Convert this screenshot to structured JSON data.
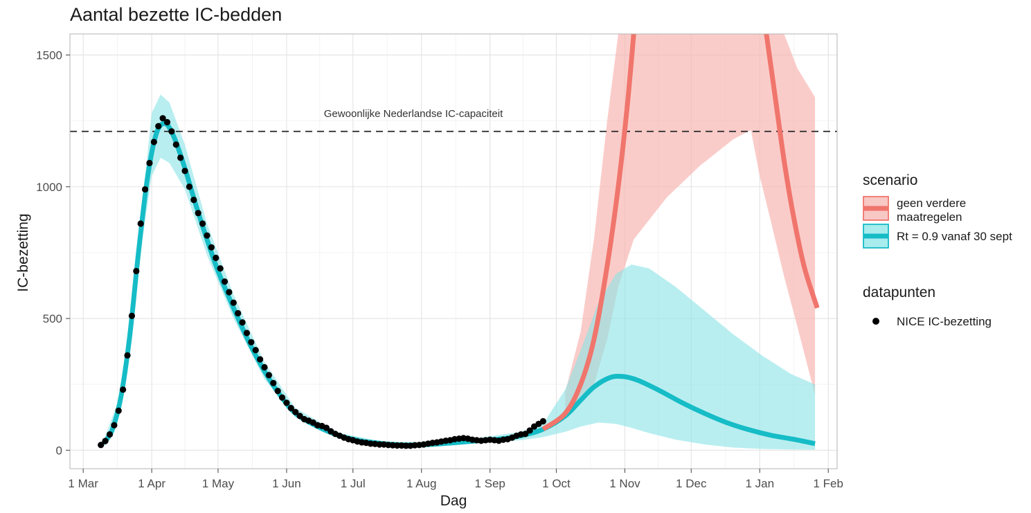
{
  "chart_data": {
    "type": "line",
    "title": "Aantal bezette IC-bedden",
    "xlabel": "Dag",
    "ylabel": "IC-bezetting",
    "x_axis_type": "date",
    "x_range": [
      "2020-02-24",
      "2021-02-05"
    ],
    "ylim": [
      -70,
      1580
    ],
    "x_ticks": [
      {
        "date": "2020-03-01",
        "label": "1 Mar"
      },
      {
        "date": "2020-04-01",
        "label": "1 Apr"
      },
      {
        "date": "2020-05-01",
        "label": "1 May"
      },
      {
        "date": "2020-06-01",
        "label": "1 Jun"
      },
      {
        "date": "2020-07-01",
        "label": "1 Jul"
      },
      {
        "date": "2020-08-01",
        "label": "1 Aug"
      },
      {
        "date": "2020-09-01",
        "label": "1 Sep"
      },
      {
        "date": "2020-10-01",
        "label": "1 Oct"
      },
      {
        "date": "2020-11-01",
        "label": "1 Nov"
      },
      {
        "date": "2020-12-01",
        "label": "1 Dec"
      },
      {
        "date": "2021-01-01",
        "label": "1 Jan"
      },
      {
        "date": "2021-02-01",
        "label": "1 Feb"
      }
    ],
    "y_ticks": [
      0,
      500,
      1000,
      1500
    ],
    "grid": true,
    "legend_position": "right",
    "colors": {
      "geen": "#F0756C",
      "geen_band": "#F8B4B0",
      "rt": "#16BCC6",
      "rt_band": "#8EE3E6",
      "points": "#000000",
      "capacity_line": "#333333"
    },
    "reference_line": {
      "y": 1210,
      "label": "Gewoonlijke Nederlandse IC-capaciteit"
    },
    "legend": {
      "scenario_title": "scenario",
      "scenario_items": [
        {
          "key": "geen",
          "lines": [
            "geen verdere",
            "maatregelen"
          ]
        },
        {
          "key": "rt",
          "lines": [
            "Rt = 0.9 vanaf 30 sept"
          ]
        }
      ],
      "points_title": "datapunten",
      "points_label": "NICE IC-bezetting"
    },
    "series": [
      {
        "key": "rt",
        "label": "Rt = 0.9 vanaf 30 sept",
        "points": [
          [
            "2020-03-10",
            25
          ],
          [
            "2020-03-14",
            75
          ],
          [
            "2020-03-18",
            200
          ],
          [
            "2020-03-22",
            430
          ],
          [
            "2020-03-26",
            750
          ],
          [
            "2020-03-30",
            1030
          ],
          [
            "2020-04-03",
            1200
          ],
          [
            "2020-04-07",
            1240
          ],
          [
            "2020-04-11",
            1190
          ],
          [
            "2020-04-16",
            1070
          ],
          [
            "2020-04-21",
            930
          ],
          [
            "2020-04-26",
            800
          ],
          [
            "2020-05-01",
            680
          ],
          [
            "2020-05-08",
            540
          ],
          [
            "2020-05-15",
            410
          ],
          [
            "2020-05-22",
            300
          ],
          [
            "2020-05-29",
            210
          ],
          [
            "2020-06-05",
            140
          ],
          [
            "2020-06-15",
            90
          ],
          [
            "2020-06-25",
            55
          ],
          [
            "2020-07-05",
            35
          ],
          [
            "2020-07-15",
            25
          ],
          [
            "2020-07-25",
            20
          ],
          [
            "2020-08-05",
            22
          ],
          [
            "2020-08-15",
            28
          ],
          [
            "2020-08-25",
            35
          ],
          [
            "2020-09-05",
            42
          ],
          [
            "2020-09-15",
            55
          ],
          [
            "2020-09-25",
            80
          ],
          [
            "2020-10-05",
            130
          ],
          [
            "2020-10-12",
            190
          ],
          [
            "2020-10-18",
            240
          ],
          [
            "2020-10-25",
            275
          ],
          [
            "2020-10-31",
            280
          ],
          [
            "2020-11-07",
            265
          ],
          [
            "2020-11-17",
            225
          ],
          [
            "2020-11-27",
            180
          ],
          [
            "2020-12-07",
            140
          ],
          [
            "2020-12-17",
            105
          ],
          [
            "2020-12-27",
            78
          ],
          [
            "2021-01-06",
            57
          ],
          [
            "2021-01-16",
            42
          ],
          [
            "2021-01-26",
            25
          ]
        ],
        "band": [
          [
            "2020-03-10",
            20,
            30
          ],
          [
            "2020-03-18",
            185,
            215
          ],
          [
            "2020-03-26",
            700,
            800
          ],
          [
            "2020-04-01",
            1040,
            1280
          ],
          [
            "2020-04-05",
            1110,
            1350
          ],
          [
            "2020-04-09",
            1090,
            1320
          ],
          [
            "2020-04-16",
            990,
            1160
          ],
          [
            "2020-04-26",
            740,
            860
          ],
          [
            "2020-05-08",
            500,
            590
          ],
          [
            "2020-05-22",
            270,
            335
          ],
          [
            "2020-06-05",
            125,
            160
          ],
          [
            "2020-06-25",
            45,
            65
          ],
          [
            "2020-07-15",
            20,
            32
          ],
          [
            "2020-08-05",
            15,
            30
          ],
          [
            "2020-08-25",
            25,
            45
          ],
          [
            "2020-09-15",
            38,
            70
          ],
          [
            "2020-09-25",
            50,
            100
          ],
          [
            "2020-10-05",
            70,
            230
          ],
          [
            "2020-10-12",
            90,
            380
          ],
          [
            "2020-10-20",
            105,
            560
          ],
          [
            "2020-10-28",
            100,
            670
          ],
          [
            "2020-11-04",
            85,
            705
          ],
          [
            "2020-11-12",
            65,
            690
          ],
          [
            "2020-11-24",
            40,
            620
          ],
          [
            "2020-12-07",
            22,
            530
          ],
          [
            "2020-12-20",
            10,
            440
          ],
          [
            "2021-01-02",
            5,
            360
          ],
          [
            "2021-01-15",
            3,
            290
          ],
          [
            "2021-01-26",
            2,
            250
          ]
        ]
      },
      {
        "key": "geen",
        "label": "geen verdere maatregelen",
        "points": [
          [
            "2020-09-25",
            80
          ],
          [
            "2020-10-05",
            140
          ],
          [
            "2020-10-12",
            250
          ],
          [
            "2020-10-18",
            420
          ],
          [
            "2020-10-24",
            700
          ],
          [
            "2020-10-29",
            1000
          ],
          [
            "2020-11-02",
            1300
          ],
          [
            "2020-11-05",
            1580
          ],
          [
            "2021-01-04",
            1580
          ],
          [
            "2021-01-08",
            1340
          ],
          [
            "2021-01-12",
            1100
          ],
          [
            "2021-01-16",
            900
          ],
          [
            "2021-01-21",
            700
          ],
          [
            "2021-01-27",
            540
          ]
        ],
        "band": [
          [
            "2020-10-05",
            120,
            220
          ],
          [
            "2020-10-12",
            180,
            450
          ],
          [
            "2020-10-18",
            250,
            800
          ],
          [
            "2020-10-24",
            420,
            1250
          ],
          [
            "2020-10-29",
            620,
            1580
          ],
          [
            "2020-11-05",
            800,
            1580
          ],
          [
            "2020-11-20",
            960,
            1580
          ],
          [
            "2020-12-05",
            1080,
            1580
          ],
          [
            "2020-12-20",
            1180,
            1580
          ],
          [
            "2020-12-28",
            1215,
            1580
          ],
          [
            "2021-01-01",
            1040,
            1580
          ],
          [
            "2021-01-06",
            870,
            1580
          ],
          [
            "2021-01-12",
            660,
            1580
          ],
          [
            "2021-01-18",
            470,
            1450
          ],
          [
            "2021-01-26",
            210,
            1340
          ]
        ]
      }
    ],
    "observed_points": [
      [
        "2020-03-09",
        20
      ],
      [
        "2020-03-11",
        35
      ],
      [
        "2020-03-13",
        60
      ],
      [
        "2020-03-15",
        95
      ],
      [
        "2020-03-17",
        150
      ],
      [
        "2020-03-19",
        230
      ],
      [
        "2020-03-21",
        360
      ],
      [
        "2020-03-23",
        510
      ],
      [
        "2020-03-25",
        680
      ],
      [
        "2020-03-27",
        860
      ],
      [
        "2020-03-29",
        990
      ],
      [
        "2020-03-31",
        1090
      ],
      [
        "2020-04-02",
        1170
      ],
      [
        "2020-04-04",
        1230
      ],
      [
        "2020-04-06",
        1260
      ],
      [
        "2020-04-08",
        1245
      ],
      [
        "2020-04-10",
        1210
      ],
      [
        "2020-04-12",
        1160
      ],
      [
        "2020-04-14",
        1110
      ],
      [
        "2020-04-16",
        1060
      ],
      [
        "2020-04-18",
        1000
      ],
      [
        "2020-04-20",
        950
      ],
      [
        "2020-04-22",
        900
      ],
      [
        "2020-04-24",
        860
      ],
      [
        "2020-04-26",
        815
      ],
      [
        "2020-04-28",
        770
      ],
      [
        "2020-04-30",
        730
      ],
      [
        "2020-05-02",
        690
      ],
      [
        "2020-05-04",
        640
      ],
      [
        "2020-05-06",
        600
      ],
      [
        "2020-05-08",
        560
      ],
      [
        "2020-05-10",
        520
      ],
      [
        "2020-05-12",
        485
      ],
      [
        "2020-05-14",
        445
      ],
      [
        "2020-05-16",
        410
      ],
      [
        "2020-05-18",
        380
      ],
      [
        "2020-05-20",
        345
      ],
      [
        "2020-05-22",
        315
      ],
      [
        "2020-05-24",
        285
      ],
      [
        "2020-05-26",
        255
      ],
      [
        "2020-05-28",
        225
      ],
      [
        "2020-05-30",
        200
      ],
      [
        "2020-06-01",
        180
      ],
      [
        "2020-06-03",
        160
      ],
      [
        "2020-06-05",
        145
      ],
      [
        "2020-06-07",
        130
      ],
      [
        "2020-06-09",
        118
      ],
      [
        "2020-06-11",
        112
      ],
      [
        "2020-06-13",
        105
      ],
      [
        "2020-06-15",
        95
      ],
      [
        "2020-06-17",
        92
      ],
      [
        "2020-06-19",
        85
      ],
      [
        "2020-06-21",
        72
      ],
      [
        "2020-06-23",
        62
      ],
      [
        "2020-06-25",
        55
      ],
      [
        "2020-06-27",
        48
      ],
      [
        "2020-06-29",
        42
      ],
      [
        "2020-07-01",
        38
      ],
      [
        "2020-07-03",
        33
      ],
      [
        "2020-07-05",
        30
      ],
      [
        "2020-07-07",
        28
      ],
      [
        "2020-07-09",
        25
      ],
      [
        "2020-07-11",
        24
      ],
      [
        "2020-07-13",
        22
      ],
      [
        "2020-07-15",
        22
      ],
      [
        "2020-07-17",
        20
      ],
      [
        "2020-07-19",
        19
      ],
      [
        "2020-07-21",
        18
      ],
      [
        "2020-07-23",
        18
      ],
      [
        "2020-07-25",
        17
      ],
      [
        "2020-07-27",
        17
      ],
      [
        "2020-07-29",
        19
      ],
      [
        "2020-07-31",
        20
      ],
      [
        "2020-08-02",
        22
      ],
      [
        "2020-08-04",
        25
      ],
      [
        "2020-08-06",
        28
      ],
      [
        "2020-08-08",
        30
      ],
      [
        "2020-08-10",
        33
      ],
      [
        "2020-08-12",
        36
      ],
      [
        "2020-08-14",
        38
      ],
      [
        "2020-08-16",
        42
      ],
      [
        "2020-08-18",
        44
      ],
      [
        "2020-08-20",
        46
      ],
      [
        "2020-08-22",
        44
      ],
      [
        "2020-08-24",
        40
      ],
      [
        "2020-08-26",
        38
      ],
      [
        "2020-08-28",
        36
      ],
      [
        "2020-08-30",
        38
      ],
      [
        "2020-09-01",
        40
      ],
      [
        "2020-09-03",
        38
      ],
      [
        "2020-09-05",
        36
      ],
      [
        "2020-09-07",
        40
      ],
      [
        "2020-09-09",
        42
      ],
      [
        "2020-09-11",
        48
      ],
      [
        "2020-09-13",
        55
      ],
      [
        "2020-09-15",
        60
      ],
      [
        "2020-09-17",
        62
      ],
      [
        "2020-09-19",
        75
      ],
      [
        "2020-09-21",
        90
      ],
      [
        "2020-09-23",
        100
      ],
      [
        "2020-09-25",
        110
      ]
    ]
  }
}
